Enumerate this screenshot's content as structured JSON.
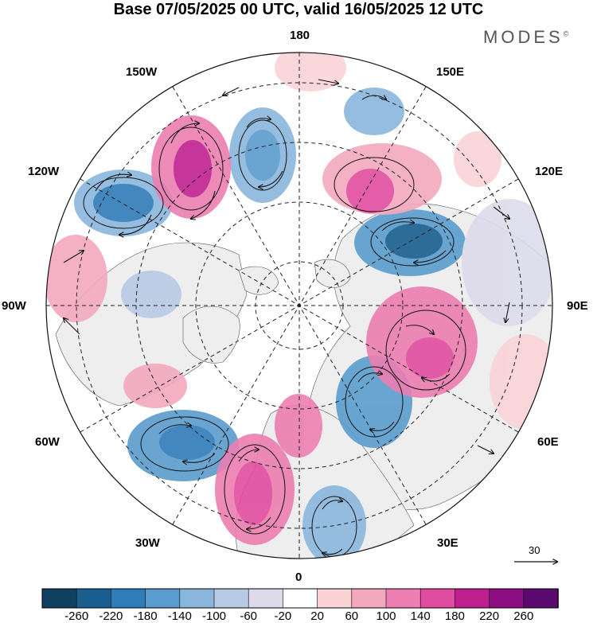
{
  "title": "Base 07/05/2025 00 UTC, valid 16/05/2025 12 UTC",
  "brand": "MODES",
  "brand_mark": "©",
  "longitude_labels": {
    "lon_180": "180",
    "lon_150e": "150E",
    "lon_120e": "120E",
    "lon_90e": "90E",
    "lon_60e": "60E",
    "lon_30e": "30E",
    "lon_0": "0",
    "lon_30w": "30W",
    "lon_60w": "60W",
    "lon_90w": "90W",
    "lon_120w": "120W",
    "lon_150w": "150W"
  },
  "reference_vector": "30",
  "colorbar": {
    "labels": [
      "-260",
      "-220",
      "-180",
      "-140",
      "-100",
      "-60",
      "-20",
      "20",
      "60",
      "100",
      "140",
      "180",
      "220",
      "260"
    ],
    "colors": [
      "#10405f",
      "#1a5f8f",
      "#2e7cb8",
      "#5a9ccd",
      "#8ab6dc",
      "#b9cae6",
      "#dddbeb",
      "#ffffff",
      "#f9d3d6",
      "#f3a9bd",
      "#ec7eb1",
      "#e04c9f",
      "#c0208f",
      "#8c0c82",
      "#5a0a6e"
    ]
  },
  "anomaly_colors": {
    "strong_negative": "#2e7cb8",
    "moderate_negative": "#8ab6dc",
    "weak_negative": "#dddbeb",
    "weak_positive": "#f9d3d6",
    "moderate_positive": "#ec7eb1",
    "strong_positive": "#c0208f",
    "land": "#efefef"
  }
}
